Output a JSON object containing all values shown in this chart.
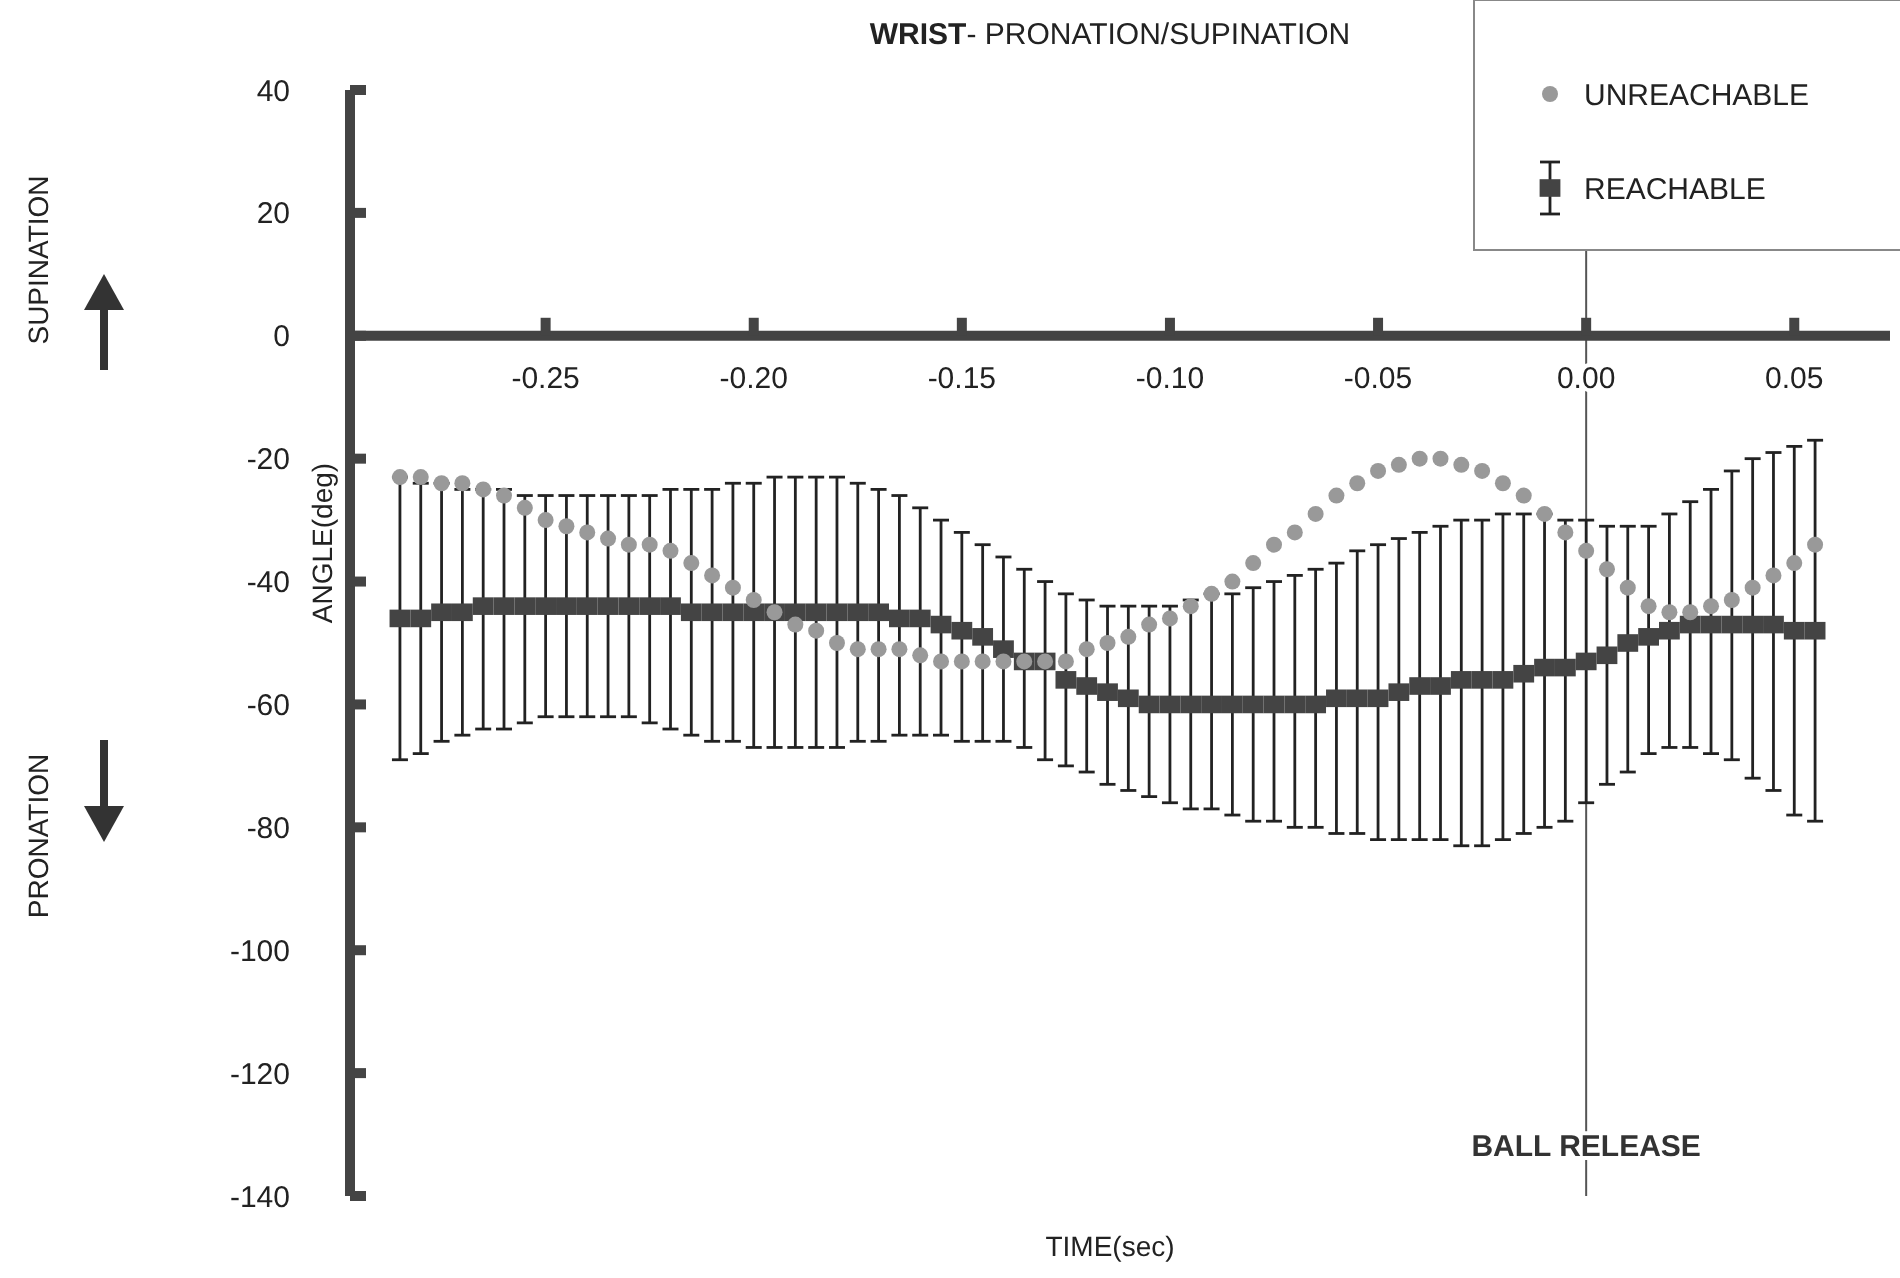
{
  "chart_data": {
    "type": "scatter",
    "title": "WRIST- PRONATION/SUPINATION",
    "xlabel": "TIME(sec)",
    "ylabel": "ANGLE(deg)",
    "annotations": [
      "SUPINATION",
      "PRONATION"
    ],
    "xlim": [
      -0.297,
      0.073
    ],
    "xticks": [
      {
        "value": -0.25,
        "label": "-0.25"
      },
      {
        "value": -0.2,
        "label": "-0.20"
      },
      {
        "value": -0.15,
        "label": "-0.15"
      },
      {
        "value": -0.1,
        "label": "-0.10"
      },
      {
        "value": -0.05,
        "label": "-0.05"
      },
      {
        "value": 0,
        "label": "0.00"
      },
      {
        "value": 0.05,
        "label": "0.05"
      }
    ],
    "ylim": [
      -140,
      40
    ],
    "yticks": [
      -140,
      -120,
      -100,
      -80,
      -60,
      -40,
      -20,
      0,
      20,
      40
    ],
    "grid": false,
    "legend": "top right",
    "ref_lines": [
      {
        "axis": "x",
        "value": 0,
        "label": "BALL RELEASE",
        "color": "#555555"
      }
    ],
    "x": [
      -0.285,
      -0.28,
      -0.275,
      -0.27,
      -0.265,
      -0.26,
      -0.255,
      -0.25,
      -0.245,
      -0.24,
      -0.235,
      -0.23,
      -0.225,
      -0.22,
      -0.215,
      -0.21,
      -0.205,
      -0.2,
      -0.195,
      -0.19,
      -0.185,
      -0.18,
      -0.175,
      -0.17,
      -0.165,
      -0.16,
      -0.155,
      -0.15,
      -0.145,
      -0.14,
      -0.135,
      -0.13,
      -0.125,
      -0.12,
      -0.115,
      -0.11,
      -0.105,
      -0.1,
      -0.095,
      -0.09,
      -0.085,
      -0.08,
      -0.075,
      -0.07,
      -0.065,
      -0.06,
      -0.055,
      -0.05,
      -0.045,
      -0.04,
      -0.035,
      -0.03,
      -0.025,
      -0.02,
      -0.015,
      -0.01,
      -0.005,
      0,
      0.005,
      0.01,
      0.015,
      0.02,
      0.025,
      0.03,
      0.035,
      0.04,
      0.045,
      0.05,
      0.055
    ],
    "series": [
      {
        "name": "UNREACHABLE",
        "color": "#999999",
        "marker": "circle",
        "values": [
          -23,
          -23,
          -24,
          -24,
          -25,
          -26,
          -28,
          -30,
          -31,
          -32,
          -33,
          -34,
          -34,
          -35,
          -37,
          -39,
          -41,
          -43,
          -45,
          -47,
          -48,
          -50,
          -51,
          -51,
          -51,
          -52,
          -53,
          -53,
          -53,
          -53,
          -53,
          -53,
          -53,
          -51,
          -50,
          -49,
          -47,
          -46,
          -44,
          -42,
          -40,
          -37,
          -34,
          -32,
          -29,
          -26,
          -24,
          -22,
          -21,
          -20,
          -20,
          -21,
          -22,
          -24,
          -26,
          -29,
          -32,
          -35,
          -38,
          -41,
          -44,
          -45,
          -45,
          -44,
          -43,
          -41,
          -39,
          -37,
          -34
        ]
      },
      {
        "name": "REACHABLE",
        "color": "#444444",
        "marker": "square",
        "values": [
          -46,
          -46,
          -45,
          -45,
          -44,
          -44,
          -44,
          -44,
          -44,
          -44,
          -44,
          -44,
          -44,
          -44,
          -45,
          -45,
          -45,
          -45,
          -45,
          -45,
          -45,
          -45,
          -45,
          -45,
          -46,
          -46,
          -47,
          -48,
          -49,
          -51,
          -53,
          -53,
          -56,
          -57,
          -58,
          -59,
          -60,
          -60,
          -60,
          -60,
          -60,
          -60,
          -60,
          -60,
          -60,
          -59,
          -59,
          -59,
          -58,
          -57,
          -57,
          -56,
          -56,
          -56,
          -55,
          -54,
          -54,
          -53,
          -52,
          -50,
          -49,
          -48,
          -47,
          -47,
          -47,
          -47,
          -47,
          -48,
          -48
        ],
        "errors": [
          [
            -69,
            -23
          ],
          [
            -68,
            -24
          ],
          [
            -66,
            -24
          ],
          [
            -65,
            -25
          ],
          [
            -64,
            -25
          ],
          [
            -64,
            -25
          ],
          [
            -63,
            -26
          ],
          [
            -62,
            -26
          ],
          [
            -62,
            -26
          ],
          [
            -62,
            -26
          ],
          [
            -62,
            -26
          ],
          [
            -62,
            -26
          ],
          [
            -63,
            -26
          ],
          [
            -64,
            -25
          ],
          [
            -65,
            -25
          ],
          [
            -66,
            -25
          ],
          [
            -66,
            -24
          ],
          [
            -67,
            -24
          ],
          [
            -67,
            -23
          ],
          [
            -67,
            -23
          ],
          [
            -67,
            -23
          ],
          [
            -67,
            -23
          ],
          [
            -66,
            -24
          ],
          [
            -66,
            -25
          ],
          [
            -65,
            -26
          ],
          [
            -65,
            -28
          ],
          [
            -65,
            -30
          ],
          [
            -66,
            -32
          ],
          [
            -66,
            -34
          ],
          [
            -66,
            -36
          ],
          [
            -67,
            -38
          ],
          [
            -69,
            -40
          ],
          [
            -70,
            -42
          ],
          [
            -71,
            -43
          ],
          [
            -73,
            -44
          ],
          [
            -74,
            -44
          ],
          [
            -75,
            -44
          ],
          [
            -76,
            -44
          ],
          [
            -77,
            -43
          ],
          [
            -77,
            -42
          ],
          [
            -78,
            -42
          ],
          [
            -79,
            -41
          ],
          [
            -79,
            -40
          ],
          [
            -80,
            -39
          ],
          [
            -80,
            -38
          ],
          [
            -81,
            -37
          ],
          [
            -81,
            -35
          ],
          [
            -82,
            -34
          ],
          [
            -82,
            -33
          ],
          [
            -82,
            -32
          ],
          [
            -82,
            -31
          ],
          [
            -83,
            -30
          ],
          [
            -83,
            -30
          ],
          [
            -82,
            -29
          ],
          [
            -81,
            -29
          ],
          [
            -80,
            -29
          ],
          [
            -79,
            -30
          ],
          [
            -76,
            -30
          ],
          [
            -73,
            -31
          ],
          [
            -71,
            -31
          ],
          [
            -68,
            -31
          ],
          [
            -67,
            -29
          ],
          [
            -67,
            -27
          ],
          [
            -68,
            -25
          ],
          [
            -69,
            -22
          ],
          [
            -72,
            -20
          ],
          [
            -74,
            -19
          ],
          [
            -78,
            -18
          ],
          [
            -79,
            -17
          ]
        ]
      }
    ]
  }
}
